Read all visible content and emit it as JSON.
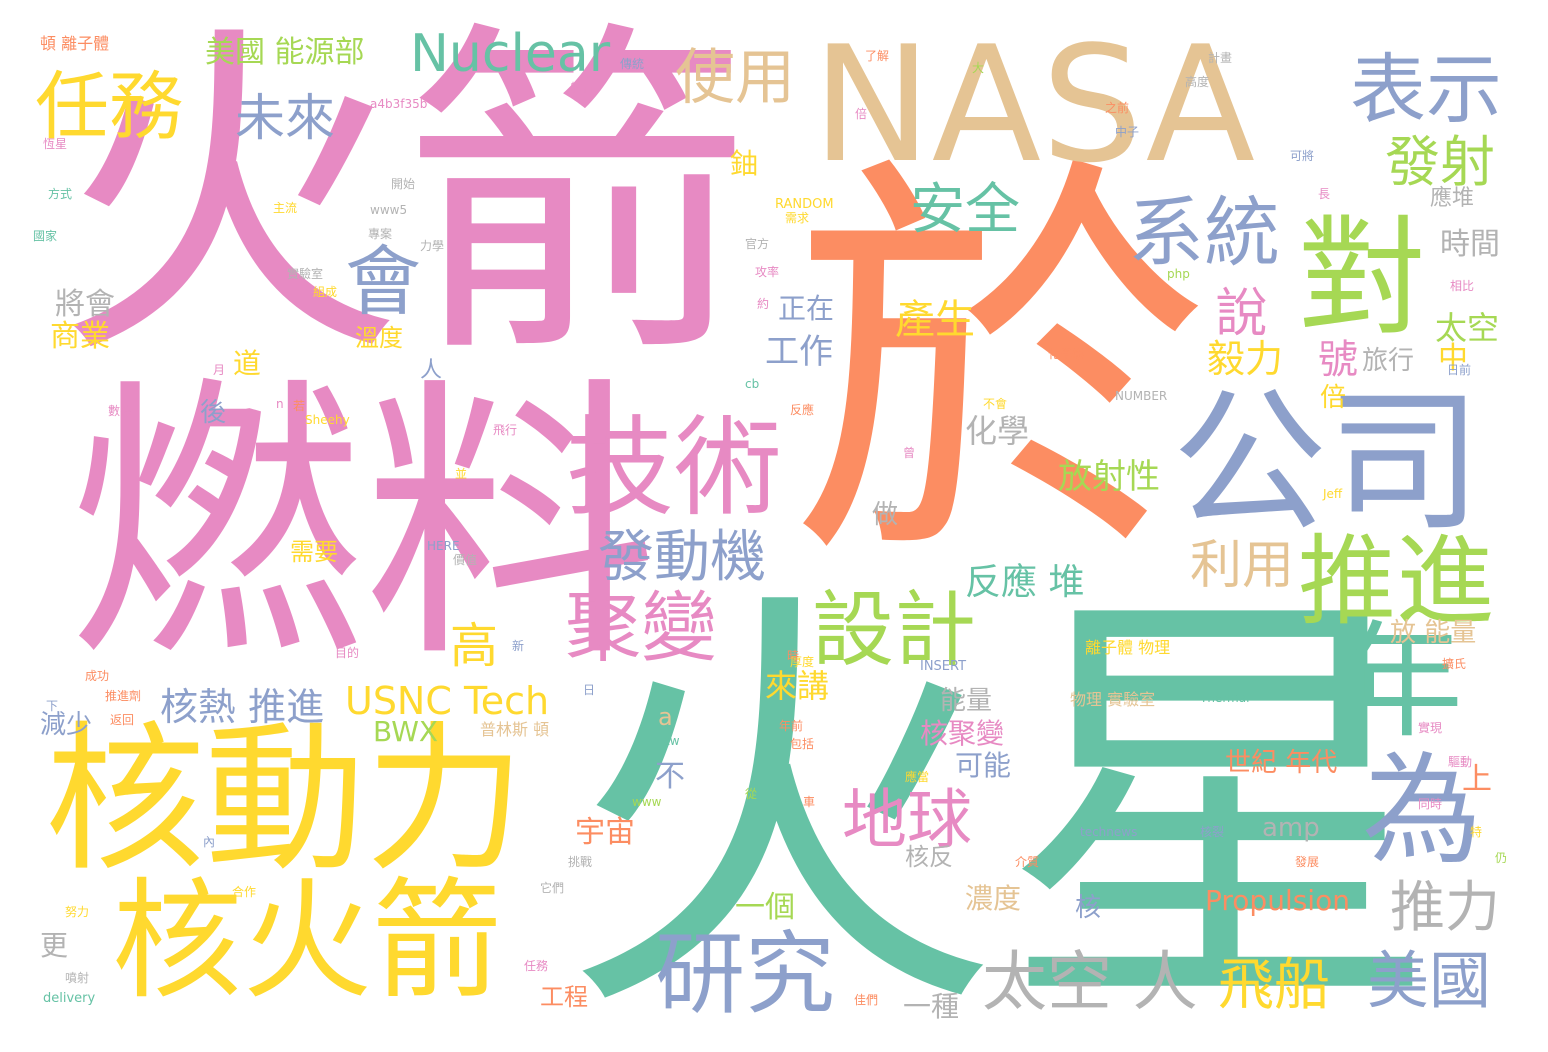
{
  "palette": {
    "teal": "#66c2a5",
    "orange": "#fc8d62",
    "blue": "#8da0cb",
    "pink": "#e78ac3",
    "green": "#a6d854",
    "yellow": "#ffd92f",
    "tan": "#e5c494",
    "gray": "#b3b3b3"
  },
  "words": [
    {
      "text": "火箭",
      "color": "pink"
    },
    {
      "text": "於",
      "color": "orange"
    },
    {
      "text": "火星",
      "color": "teal"
    },
    {
      "text": "燃料",
      "color": "pink"
    },
    {
      "text": "NASA",
      "color": "tan"
    },
    {
      "text": "核動力",
      "color": "yellow"
    },
    {
      "text": "核火箭",
      "color": "yellow"
    },
    {
      "text": "公司",
      "color": "blue"
    },
    {
      "text": "技術",
      "color": "pink"
    },
    {
      "text": "對",
      "color": "green"
    },
    {
      "text": "年",
      "color": "teal"
    },
    {
      "text": "為",
      "color": "blue"
    },
    {
      "text": "推進",
      "color": "green"
    },
    {
      "text": "研究",
      "color": "blue"
    },
    {
      "text": "設計",
      "color": "green"
    },
    {
      "text": "聚變",
      "color": "pink"
    },
    {
      "text": "系統",
      "color": "blue"
    },
    {
      "text": "表示",
      "color": "blue"
    },
    {
      "text": "任務",
      "color": "yellow"
    },
    {
      "text": "會",
      "color": "blue"
    },
    {
      "text": "Nuclear",
      "color": "teal"
    },
    {
      "text": "發動機",
      "color": "blue"
    },
    {
      "text": "地球",
      "color": "pink"
    },
    {
      "text": "太空 人",
      "color": "gray"
    },
    {
      "text": "美國",
      "color": "blue"
    },
    {
      "text": "飛船",
      "color": "yellow"
    },
    {
      "text": "使用",
      "color": "tan"
    },
    {
      "text": "發射",
      "color": "green"
    },
    {
      "text": "安全",
      "color": "teal"
    },
    {
      "text": "未來",
      "color": "blue"
    },
    {
      "text": "推力",
      "color": "gray"
    },
    {
      "text": "利用",
      "color": "tan"
    },
    {
      "text": "說",
      "color": "pink"
    },
    {
      "text": "高",
      "color": "yellow"
    },
    {
      "text": "USNC Tech",
      "color": "yellow"
    },
    {
      "text": "核熱 推進",
      "color": "blue"
    },
    {
      "text": "美國 能源部",
      "color": "green"
    },
    {
      "text": "反應 堆",
      "color": "teal"
    },
    {
      "text": "放射性",
      "color": "green"
    },
    {
      "text": "Propulsion",
      "color": "orange"
    },
    {
      "text": "毅力",
      "color": "yellow"
    },
    {
      "text": "太空",
      "color": "green"
    },
    {
      "text": "號",
      "color": "pink"
    },
    {
      "text": "旅行",
      "color": "gray"
    },
    {
      "text": "產生",
      "color": "yellow"
    },
    {
      "text": "工作",
      "color": "blue"
    },
    {
      "text": "化學",
      "color": "gray"
    },
    {
      "text": "時間",
      "color": "gray"
    },
    {
      "text": "將會",
      "color": "gray"
    },
    {
      "text": "商業",
      "color": "yellow"
    },
    {
      "text": "BWX",
      "color": "green"
    },
    {
      "text": "來講",
      "color": "yellow"
    },
    {
      "text": "宇宙",
      "color": "orange"
    },
    {
      "text": "核聚變",
      "color": "pink"
    },
    {
      "text": "世紀 年代",
      "color": "orange"
    },
    {
      "text": "放 能量",
      "color": "tan"
    },
    {
      "text": "一個",
      "color": "green"
    },
    {
      "text": "一種",
      "color": "gray"
    },
    {
      "text": "工程",
      "color": "orange"
    },
    {
      "text": "需要",
      "color": "yellow"
    },
    {
      "text": "溫度",
      "color": "yellow"
    },
    {
      "text": "正在",
      "color": "blue"
    },
    {
      "text": "濃度",
      "color": "tan"
    },
    {
      "text": "減少",
      "color": "blue"
    },
    {
      "text": "可能",
      "color": "blue"
    },
    {
      "text": "能量",
      "color": "gray"
    },
    {
      "text": "amp",
      "color": "gray"
    },
    {
      "text": "核反",
      "color": "gray"
    },
    {
      "text": "道",
      "color": "yellow"
    },
    {
      "text": "後",
      "color": "blue"
    },
    {
      "text": "鈾",
      "color": "yellow"
    },
    {
      "text": "應堆",
      "color": "gray"
    },
    {
      "text": "中",
      "color": "yellow"
    },
    {
      "text": "上",
      "color": "orange"
    },
    {
      "text": "不",
      "color": "blue"
    },
    {
      "text": "更",
      "color": "gray"
    },
    {
      "text": "核",
      "color": "blue"
    },
    {
      "text": "做",
      "color": "gray"
    },
    {
      "text": "人",
      "color": "blue"
    },
    {
      "text": "a",
      "color": "tan"
    },
    {
      "text": "倍",
      "color": "yellow"
    },
    {
      "text": "普林斯 頓",
      "color": "tan"
    },
    {
      "text": "離子體 物理",
      "color": "yellow"
    },
    {
      "text": "物理 實驗室",
      "color": "tan"
    },
    {
      "text": "頓 離子體",
      "color": "orange"
    },
    {
      "text": "a4b3f35b",
      "color": "pink"
    },
    {
      "text": "RANDOM",
      "color": "yellow"
    },
    {
      "text": "NUMBER",
      "color": "gray"
    },
    {
      "text": "INSERT",
      "color": "blue"
    },
    {
      "text": "HERE",
      "color": "blue"
    },
    {
      "text": "Thermal",
      "color": "teal"
    },
    {
      "text": "technews",
      "color": "blue"
    },
    {
      "text": "Sheehy",
      "color": "yellow"
    },
    {
      "text": "Jeff",
      "color": "yellow"
    },
    {
      "text": "delivery",
      "color": "teal"
    },
    {
      "text": "tw",
      "color": "teal"
    },
    {
      "text": "www",
      "color": "green"
    },
    {
      "text": "www5",
      "color": "gray"
    },
    {
      "text": "php",
      "color": "green"
    },
    {
      "text": "cb",
      "color": "teal"
    },
    {
      "text": "方式",
      "color": "teal"
    },
    {
      "text": "國家",
      "color": "teal"
    },
    {
      "text": "成功",
      "color": "orange"
    },
    {
      "text": "努力",
      "color": "yellow"
    },
    {
      "text": "合作",
      "color": "yellow"
    },
    {
      "text": "噴射",
      "color": "gray"
    },
    {
      "text": "開始",
      "color": "gray"
    },
    {
      "text": "專案",
      "color": "gray"
    },
    {
      "text": "力學",
      "color": "gray"
    },
    {
      "text": "實驗室",
      "color": "gray"
    },
    {
      "text": "官方",
      "color": "gray"
    },
    {
      "text": "攻率",
      "color": "pink"
    },
    {
      "text": "需求",
      "color": "yellow"
    },
    {
      "text": "了解",
      "color": "orange"
    },
    {
      "text": "計畫",
      "color": "gray"
    },
    {
      "text": "高度",
      "color": "gray"
    },
    {
      "text": "之前",
      "color": "orange"
    },
    {
      "text": "中子",
      "color": "blue"
    },
    {
      "text": "可將",
      "color": "blue"
    },
    {
      "text": "相比",
      "color": "pink"
    },
    {
      "text": "日前",
      "color": "blue"
    },
    {
      "text": "化學燃",
      "color": "orange"
    },
    {
      "text": "不會",
      "color": "yellow"
    },
    {
      "text": "反應",
      "color": "orange"
    },
    {
      "text": "飛行",
      "color": "pink"
    },
    {
      "text": "任務",
      "color": "pink"
    },
    {
      "text": "目的",
      "color": "pink"
    },
    {
      "text": "返回",
      "color": "orange"
    },
    {
      "text": "推進劑",
      "color": "orange"
    },
    {
      "text": "挑戰",
      "color": "gray"
    },
    {
      "text": "它們",
      "color": "gray"
    },
    {
      "text": "介質",
      "color": "orange"
    },
    {
      "text": "包括",
      "color": "orange"
    },
    {
      "text": "厚度",
      "color": "yellow"
    },
    {
      "text": "同時",
      "color": "pink"
    },
    {
      "text": "實現",
      "color": "pink"
    },
    {
      "text": "驅動",
      "color": "pink"
    },
    {
      "text": "擴氏",
      "color": "orange"
    },
    {
      "text": "發展",
      "color": "orange"
    },
    {
      "text": "應當",
      "color": "yellow"
    },
    {
      "text": "年前",
      "color": "orange"
    },
    {
      "text": "價值",
      "color": "gray"
    },
    {
      "text": "傳統",
      "color": "blue"
    },
    {
      "text": "航行",
      "color": "pink"
    },
    {
      "text": "主流",
      "color": "yellow"
    },
    {
      "text": "組成",
      "color": "yellow"
    },
    {
      "text": "數據",
      "color": "pink"
    },
    {
      "text": "恆星",
      "color": "pink"
    },
    {
      "text": "佳們",
      "color": "orange"
    },
    {
      "text": "核裂",
      "color": "blue"
    },
    {
      "text": "新",
      "color": "blue"
    },
    {
      "text": "月",
      "color": "pink"
    },
    {
      "text": "n",
      "color": "pink"
    },
    {
      "text": "若",
      "color": "orange"
    },
    {
      "text": "倍",
      "color": "pink"
    },
    {
      "text": "大",
      "color": "green"
    },
    {
      "text": "並",
      "color": "yellow"
    },
    {
      "text": "長",
      "color": "pink"
    },
    {
      "text": "內",
      "color": "blue"
    },
    {
      "text": "從",
      "color": "green"
    },
    {
      "text": "車",
      "color": "orange"
    },
    {
      "text": "特",
      "color": "yellow"
    },
    {
      "text": "仍",
      "color": "green"
    },
    {
      "text": "時",
      "color": "orange"
    },
    {
      "text": "曾",
      "color": "pink"
    },
    {
      "text": "約",
      "color": "pink"
    },
    {
      "text": "日",
      "color": "blue"
    },
    {
      "text": "下",
      "color": "blue"
    }
  ]
}
